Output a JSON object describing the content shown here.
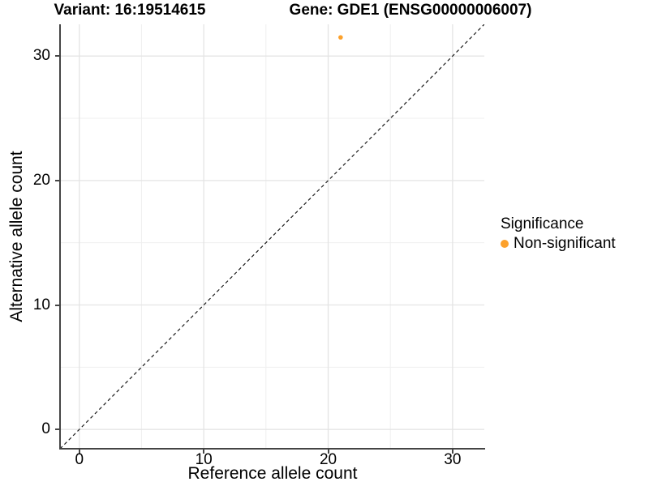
{
  "titles": {
    "variant": "Variant: 16:19514615",
    "gene": "Gene: GDE1 (ENSG00000006007)"
  },
  "legend": {
    "title": "Significance",
    "items": [
      {
        "label": "Non-significant",
        "color": "#FCA12C"
      }
    ]
  },
  "chart_data": {
    "type": "scatter",
    "title": "Variant: 16:19514615   Gene: GDE1 (ENSG00000006007)",
    "xlabel": "Reference allele count",
    "ylabel": "Alternative allele count",
    "xlim": [
      -1.55,
      32.55
    ],
    "ylim": [
      -1.55,
      32.55
    ],
    "xticks": [
      0,
      10,
      20,
      30
    ],
    "yticks": [
      0,
      10,
      20,
      30
    ],
    "minor_ticks": [
      5,
      15,
      25
    ],
    "grid": true,
    "legend_position": "right",
    "series": [
      {
        "name": "Non-significant",
        "color": "#FCA12C",
        "points": [
          {
            "x": 21,
            "y": 31.5
          }
        ]
      }
    ],
    "reference_line": {
      "type": "identity",
      "slope": 1,
      "intercept": 0,
      "style": "dashed",
      "color": "#1a1a1a"
    }
  },
  "colors": {
    "grid_major": "#E4E4E4",
    "grid_minor": "#EFEFEF",
    "axis": "#454545",
    "point": "#FCA12C",
    "ref_line": "#1a1a1a"
  }
}
